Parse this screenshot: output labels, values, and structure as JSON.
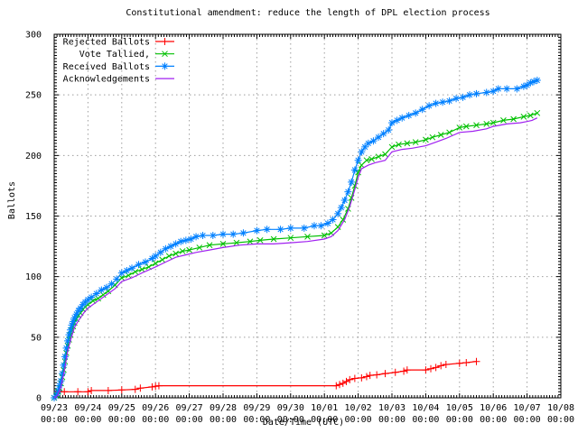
{
  "window": {
    "background": "#ffffff"
  },
  "colors": {
    "axis": "#000000",
    "grid": "#9e9e9e",
    "text": "#000000"
  },
  "chart_data": {
    "type": "line",
    "title": "Constitutional amendment: reduce the length of DPL election process",
    "xlabel": "Date/Time (UTC)",
    "ylabel": "Ballots",
    "xlim_days": [
      0,
      15
    ],
    "ylim": [
      0,
      300
    ],
    "grid": true,
    "legend_position": "top-left",
    "x_axis_note": "x values are days since 09/23 00:00 UTC",
    "x_ticks": [
      {
        "label": "09/23",
        "sub": "00:00"
      },
      {
        "label": "09/24",
        "sub": "00:00"
      },
      {
        "label": "09/25",
        "sub": "00:00"
      },
      {
        "label": "09/26",
        "sub": "00:00"
      },
      {
        "label": "09/27",
        "sub": "00:00"
      },
      {
        "label": "09/28",
        "sub": "00:00"
      },
      {
        "label": "09/29",
        "sub": "00:00"
      },
      {
        "label": "09/30",
        "sub": "00:00"
      },
      {
        "label": "10/01",
        "sub": "00:00"
      },
      {
        "label": "10/02",
        "sub": "00:00"
      },
      {
        "label": "10/03",
        "sub": "00:00"
      },
      {
        "label": "10/04",
        "sub": "00:00"
      },
      {
        "label": "10/05",
        "sub": "00:00"
      },
      {
        "label": "10/06",
        "sub": "00:00"
      },
      {
        "label": "10/07",
        "sub": "00:00"
      },
      {
        "label": "10/08",
        "sub": "00:00"
      }
    ],
    "y_ticks": [
      0,
      50,
      100,
      150,
      200,
      250,
      300
    ],
    "series": [
      {
        "name": "Rejected Ballots",
        "color": "#ff0000",
        "marker": "plus",
        "points": [
          [
            0,
            0
          ],
          [
            0.05,
            1
          ],
          [
            0.08,
            3
          ],
          [
            0.12,
            5
          ],
          [
            0.3,
            5
          ],
          [
            0.7,
            5
          ],
          [
            1.0,
            5
          ],
          [
            1.1,
            6
          ],
          [
            1.6,
            6
          ],
          [
            2.0,
            6.5
          ],
          [
            2.4,
            7
          ],
          [
            2.55,
            8
          ],
          [
            2.9,
            9
          ],
          [
            3.0,
            9.5
          ],
          [
            3.1,
            10
          ],
          [
            8.35,
            10
          ],
          [
            8.45,
            11
          ],
          [
            8.55,
            12
          ],
          [
            8.65,
            13.5
          ],
          [
            8.75,
            15
          ],
          [
            8.9,
            16
          ],
          [
            9.1,
            16.5
          ],
          [
            9.25,
            17.5
          ],
          [
            9.35,
            18.5
          ],
          [
            9.55,
            19
          ],
          [
            9.8,
            20
          ],
          [
            10.1,
            21
          ],
          [
            10.35,
            22
          ],
          [
            10.45,
            23
          ],
          [
            11.0,
            23
          ],
          [
            11.15,
            24
          ],
          [
            11.3,
            25
          ],
          [
            11.45,
            26.5
          ],
          [
            11.6,
            27.5
          ],
          [
            12.0,
            28.5
          ],
          [
            12.2,
            29
          ],
          [
            12.5,
            30
          ]
        ]
      },
      {
        "name": "Vote Tallied,",
        "color": "#00c000",
        "marker": "cross",
        "points": [
          [
            0,
            0
          ],
          [
            0.08,
            2
          ],
          [
            0.12,
            5
          ],
          [
            0.16,
            8
          ],
          [
            0.2,
            12
          ],
          [
            0.24,
            17
          ],
          [
            0.28,
            23
          ],
          [
            0.32,
            30
          ],
          [
            0.36,
            37
          ],
          [
            0.4,
            43
          ],
          [
            0.44,
            48
          ],
          [
            0.48,
            52
          ],
          [
            0.52,
            56
          ],
          [
            0.56,
            59
          ],
          [
            0.6,
            62
          ],
          [
            0.66,
            65
          ],
          [
            0.72,
            68
          ],
          [
            0.78,
            70
          ],
          [
            0.85,
            73
          ],
          [
            0.92,
            75
          ],
          [
            1.0,
            77
          ],
          [
            1.15,
            80
          ],
          [
            1.3,
            82
          ],
          [
            1.45,
            85
          ],
          [
            1.6,
            88
          ],
          [
            1.8,
            93
          ],
          [
            2.0,
            99
          ],
          [
            2.2,
            101
          ],
          [
            2.4,
            104
          ],
          [
            2.6,
            106
          ],
          [
            2.8,
            108
          ],
          [
            3.0,
            111
          ],
          [
            3.2,
            114
          ],
          [
            3.4,
            117
          ],
          [
            3.6,
            119
          ],
          [
            3.8,
            121
          ],
          [
            4.0,
            122
          ],
          [
            4.3,
            124
          ],
          [
            4.6,
            126
          ],
          [
            5.0,
            127
          ],
          [
            5.4,
            128
          ],
          [
            5.8,
            129
          ],
          [
            6.1,
            130
          ],
          [
            6.5,
            131
          ],
          [
            7.0,
            132
          ],
          [
            7.5,
            133
          ],
          [
            8.0,
            134
          ],
          [
            8.2,
            136
          ],
          [
            8.4,
            141
          ],
          [
            8.55,
            147
          ],
          [
            8.7,
            156
          ],
          [
            8.8,
            165
          ],
          [
            8.9,
            175
          ],
          [
            9.0,
            186
          ],
          [
            9.1,
            192
          ],
          [
            9.25,
            196
          ],
          [
            9.4,
            197
          ],
          [
            9.6,
            199
          ],
          [
            9.8,
            201
          ],
          [
            10.0,
            207
          ],
          [
            10.2,
            209
          ],
          [
            10.45,
            210
          ],
          [
            10.7,
            211
          ],
          [
            11.0,
            213
          ],
          [
            11.2,
            215
          ],
          [
            11.45,
            217
          ],
          [
            11.7,
            219
          ],
          [
            12.0,
            223
          ],
          [
            12.2,
            224
          ],
          [
            12.5,
            225
          ],
          [
            12.8,
            226
          ],
          [
            13.0,
            227
          ],
          [
            13.3,
            229
          ],
          [
            13.6,
            230
          ],
          [
            13.9,
            232
          ],
          [
            14.1,
            233
          ],
          [
            14.3,
            235
          ]
        ]
      },
      {
        "name": "Received Ballots",
        "color": "#0080ff",
        "marker": "star",
        "points": [
          [
            0,
            0
          ],
          [
            0.08,
            3
          ],
          [
            0.12,
            6
          ],
          [
            0.16,
            10
          ],
          [
            0.2,
            14
          ],
          [
            0.24,
            20
          ],
          [
            0.28,
            27
          ],
          [
            0.32,
            34
          ],
          [
            0.36,
            41
          ],
          [
            0.4,
            47
          ],
          [
            0.44,
            52
          ],
          [
            0.48,
            56
          ],
          [
            0.52,
            60
          ],
          [
            0.56,
            63
          ],
          [
            0.6,
            66
          ],
          [
            0.66,
            69
          ],
          [
            0.72,
            72
          ],
          [
            0.78,
            74
          ],
          [
            0.85,
            77
          ],
          [
            0.92,
            79
          ],
          [
            1.0,
            81
          ],
          [
            1.1,
            83
          ],
          [
            1.25,
            86
          ],
          [
            1.4,
            89
          ],
          [
            1.55,
            91
          ],
          [
            1.7,
            94
          ],
          [
            1.85,
            98
          ],
          [
            2.0,
            103
          ],
          [
            2.15,
            105
          ],
          [
            2.3,
            107
          ],
          [
            2.5,
            110
          ],
          [
            2.7,
            112
          ],
          [
            2.9,
            115
          ],
          [
            3.0,
            117
          ],
          [
            3.15,
            120
          ],
          [
            3.3,
            123
          ],
          [
            3.45,
            125
          ],
          [
            3.6,
            127
          ],
          [
            3.75,
            129
          ],
          [
            3.9,
            130
          ],
          [
            4.05,
            131
          ],
          [
            4.2,
            133
          ],
          [
            4.4,
            134
          ],
          [
            4.7,
            134
          ],
          [
            5.0,
            135
          ],
          [
            5.3,
            135
          ],
          [
            5.6,
            136
          ],
          [
            6.0,
            138
          ],
          [
            6.3,
            139
          ],
          [
            6.7,
            139
          ],
          [
            7.0,
            140
          ],
          [
            7.4,
            140
          ],
          [
            7.7,
            142
          ],
          [
            7.9,
            142
          ],
          [
            8.1,
            144
          ],
          [
            8.25,
            147
          ],
          [
            8.4,
            152
          ],
          [
            8.5,
            157
          ],
          [
            8.6,
            163
          ],
          [
            8.7,
            170
          ],
          [
            8.8,
            178
          ],
          [
            8.9,
            188
          ],
          [
            9.0,
            196
          ],
          [
            9.1,
            203
          ],
          [
            9.2,
            207
          ],
          [
            9.3,
            210
          ],
          [
            9.45,
            212
          ],
          [
            9.6,
            215
          ],
          [
            9.75,
            218
          ],
          [
            9.9,
            221
          ],
          [
            10.0,
            227
          ],
          [
            10.15,
            229
          ],
          [
            10.3,
            231
          ],
          [
            10.5,
            233
          ],
          [
            10.7,
            235
          ],
          [
            10.9,
            238
          ],
          [
            11.1,
            241
          ],
          [
            11.3,
            243
          ],
          [
            11.5,
            244
          ],
          [
            11.7,
            245
          ],
          [
            11.9,
            247
          ],
          [
            12.1,
            248
          ],
          [
            12.3,
            250
          ],
          [
            12.5,
            251
          ],
          [
            12.8,
            252
          ],
          [
            13.0,
            253
          ],
          [
            13.15,
            255
          ],
          [
            13.4,
            255
          ],
          [
            13.7,
            255
          ],
          [
            13.9,
            257
          ],
          [
            14.0,
            258
          ],
          [
            14.1,
            260
          ],
          [
            14.2,
            261
          ],
          [
            14.3,
            262
          ]
        ]
      },
      {
        "name": "Acknowledgements",
        "color": "#a020f0",
        "marker": "none",
        "points": [
          [
            0,
            0
          ],
          [
            0.1,
            2
          ],
          [
            0.2,
            9
          ],
          [
            0.3,
            22
          ],
          [
            0.4,
            39
          ],
          [
            0.5,
            49
          ],
          [
            0.6,
            58
          ],
          [
            0.7,
            63
          ],
          [
            0.8,
            67
          ],
          [
            0.9,
            71
          ],
          [
            1.0,
            74
          ],
          [
            1.2,
            78
          ],
          [
            1.4,
            82
          ],
          [
            1.6,
            86
          ],
          [
            1.8,
            90
          ],
          [
            2.0,
            96
          ],
          [
            2.3,
            99
          ],
          [
            2.6,
            103
          ],
          [
            3.0,
            108
          ],
          [
            3.3,
            112
          ],
          [
            3.6,
            116
          ],
          [
            3.9,
            118
          ],
          [
            4.2,
            120
          ],
          [
            4.6,
            122
          ],
          [
            5.0,
            124
          ],
          [
            5.5,
            126
          ],
          [
            6.0,
            127
          ],
          [
            6.5,
            127
          ],
          [
            7.0,
            128
          ],
          [
            7.5,
            129
          ],
          [
            8.0,
            131
          ],
          [
            8.2,
            133
          ],
          [
            8.4,
            138
          ],
          [
            8.6,
            147
          ],
          [
            8.75,
            158
          ],
          [
            8.9,
            172
          ],
          [
            9.0,
            182
          ],
          [
            9.1,
            189
          ],
          [
            9.3,
            192
          ],
          [
            9.5,
            194
          ],
          [
            9.8,
            196
          ],
          [
            10.0,
            203
          ],
          [
            10.3,
            205
          ],
          [
            10.6,
            206
          ],
          [
            11.0,
            208
          ],
          [
            11.3,
            211
          ],
          [
            11.6,
            214
          ],
          [
            12.0,
            219
          ],
          [
            12.4,
            220
          ],
          [
            12.8,
            222
          ],
          [
            13.0,
            224
          ],
          [
            13.4,
            226
          ],
          [
            13.8,
            227
          ],
          [
            14.0,
            228
          ],
          [
            14.15,
            229
          ],
          [
            14.3,
            231
          ]
        ]
      }
    ]
  }
}
